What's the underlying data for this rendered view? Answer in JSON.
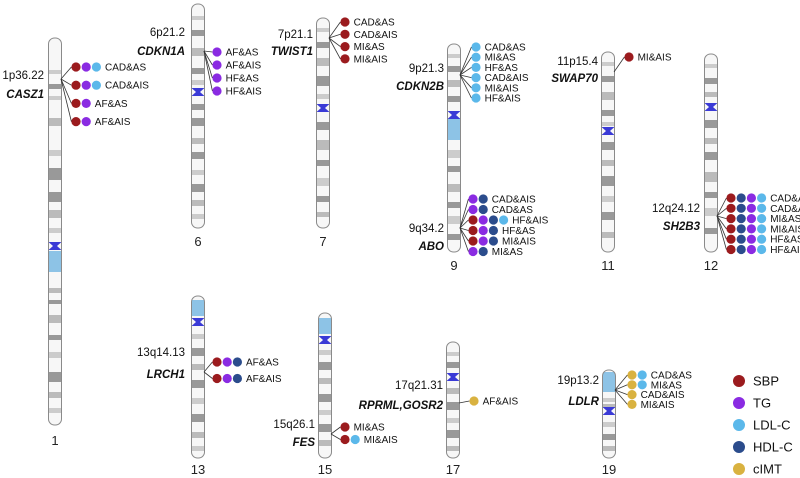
{
  "colors": {
    "SBP": "#9b1b1e",
    "TG": "#8a2be2",
    "LDL-C": "#5bb8ea",
    "HDL-C": "#2b4c8c",
    "cIMT": "#d9b240",
    "centromere": "#3a3ad6",
    "stalk": "#8dc3e6",
    "outline": "#8a8a8a"
  },
  "legend": [
    {
      "trait": "SBP",
      "label": "SBP"
    },
    {
      "trait": "TG",
      "label": "TG"
    },
    {
      "trait": "LDL-C",
      "label": "LDL-C"
    },
    {
      "trait": "HDL-C",
      "label": "HDL-C"
    },
    {
      "trait": "cIMT",
      "label": "cIMT"
    }
  ],
  "chromosomes": [
    {
      "id": "1",
      "label": "1"
    },
    {
      "id": "6",
      "label": "6"
    },
    {
      "id": "7",
      "label": "7"
    },
    {
      "id": "9",
      "label": "9"
    },
    {
      "id": "11",
      "label": "11"
    },
    {
      "id": "12",
      "label": "12"
    },
    {
      "id": "13",
      "label": "13"
    },
    {
      "id": "15",
      "label": "15"
    },
    {
      "id": "17",
      "label": "17"
    },
    {
      "id": "19",
      "label": "19"
    }
  ],
  "loci": [
    {
      "chrom": "1",
      "band": "1p36.22",
      "gene": "CASZ1",
      "rows": [
        {
          "traits": [
            "SBP",
            "TG",
            "LDL-C"
          ],
          "label": "CAD&AS"
        },
        {
          "traits": [
            "SBP",
            "TG",
            "LDL-C"
          ],
          "label": "CAD&AIS"
        },
        {
          "traits": [
            "SBP",
            "TG"
          ],
          "label": "AF&AS"
        },
        {
          "traits": [
            "SBP",
            "TG"
          ],
          "label": "AF&AIS"
        }
      ]
    },
    {
      "chrom": "6",
      "band": "6p21.2",
      "gene": "CDKN1A",
      "rows": [
        {
          "traits": [
            "TG"
          ],
          "label": "AF&AS"
        },
        {
          "traits": [
            "TG"
          ],
          "label": "AF&AIS"
        },
        {
          "traits": [
            "TG"
          ],
          "label": "HF&AS"
        },
        {
          "traits": [
            "TG"
          ],
          "label": "HF&AIS"
        }
      ]
    },
    {
      "chrom": "7",
      "band": "7p21.1",
      "gene": "TWIST1",
      "rows": [
        {
          "traits": [
            "SBP"
          ],
          "label": "CAD&AS"
        },
        {
          "traits": [
            "SBP"
          ],
          "label": "CAD&AIS"
        },
        {
          "traits": [
            "SBP"
          ],
          "label": "MI&AS"
        },
        {
          "traits": [
            "SBP"
          ],
          "label": "MI&AIS"
        }
      ]
    },
    {
      "chrom": "9",
      "band": "9p21.3",
      "gene": "CDKN2B",
      "rows": [
        {
          "traits": [
            "LDL-C"
          ],
          "label": "CAD&AS"
        },
        {
          "traits": [
            "LDL-C"
          ],
          "label": "MI&AS"
        },
        {
          "traits": [
            "LDL-C"
          ],
          "label": "HF&AS"
        },
        {
          "traits": [
            "LDL-C"
          ],
          "label": "CAD&AIS"
        },
        {
          "traits": [
            "LDL-C"
          ],
          "label": "MI&AIS"
        },
        {
          "traits": [
            "LDL-C"
          ],
          "label": "HF&AIS"
        }
      ]
    },
    {
      "chrom": "9",
      "band": "9q34.2",
      "gene": "ABO",
      "rows": [
        {
          "traits": [
            "TG",
            "HDL-C"
          ],
          "label": "CAD&AIS"
        },
        {
          "traits": [
            "TG",
            "HDL-C"
          ],
          "label": "CAD&AS"
        },
        {
          "traits": [
            "SBP",
            "TG",
            "HDL-C",
            "LDL-C"
          ],
          "label": "HF&AIS"
        },
        {
          "traits": [
            "SBP",
            "TG",
            "HDL-C"
          ],
          "label": "HF&AS"
        },
        {
          "traits": [
            "SBP",
            "TG",
            "HDL-C"
          ],
          "label": "MI&AIS"
        },
        {
          "traits": [
            "TG",
            "HDL-C"
          ],
          "label": "MI&AS"
        }
      ]
    },
    {
      "chrom": "11",
      "band": "11p15.4",
      "gene": "SWAP70",
      "rows": [
        {
          "traits": [
            "SBP"
          ],
          "label": "MI&AIS"
        }
      ]
    },
    {
      "chrom": "12",
      "band": "12q24.12",
      "gene": "SH2B3",
      "rows": [
        {
          "traits": [
            "SBP",
            "HDL-C",
            "TG",
            "LDL-C"
          ],
          "label": "CAD&AS"
        },
        {
          "traits": [
            "SBP",
            "HDL-C",
            "TG",
            "LDL-C"
          ],
          "label": "CAD&AIS"
        },
        {
          "traits": [
            "SBP",
            "HDL-C",
            "TG",
            "LDL-C"
          ],
          "label": "MI&AS"
        },
        {
          "traits": [
            "SBP",
            "HDL-C",
            "TG",
            "LDL-C"
          ],
          "label": "MI&AIS"
        },
        {
          "traits": [
            "SBP",
            "HDL-C",
            "TG",
            "LDL-C"
          ],
          "label": "HF&AS"
        },
        {
          "traits": [
            "SBP",
            "HDL-C",
            "TG",
            "LDL-C"
          ],
          "label": "HF&AIS"
        }
      ]
    },
    {
      "chrom": "13",
      "band": "13q14.13",
      "gene": "LRCH1",
      "rows": [
        {
          "traits": [
            "SBP",
            "TG",
            "HDL-C"
          ],
          "label": "AF&AS"
        },
        {
          "traits": [
            "SBP",
            "TG",
            "HDL-C"
          ],
          "label": "AF&AIS"
        }
      ]
    },
    {
      "chrom": "15",
      "band": "15q26.1",
      "gene": "FES",
      "rows": [
        {
          "traits": [
            "SBP"
          ],
          "label": "MI&AS"
        },
        {
          "traits": [
            "SBP",
            "LDL-C"
          ],
          "label": "MI&AIS"
        }
      ]
    },
    {
      "chrom": "17",
      "band": "17q21.31",
      "gene": "RPRML,GOSR2",
      "rows": [
        {
          "traits": [
            "cIMT"
          ],
          "label": "AF&AIS"
        }
      ]
    },
    {
      "chrom": "19",
      "band": "19p13.2",
      "gene": "LDLR",
      "rows": [
        {
          "traits": [
            "cIMT",
            "LDL-C"
          ],
          "label": "CAD&AS"
        },
        {
          "traits": [
            "cIMT",
            "LDL-C"
          ],
          "label": "MI&AS"
        },
        {
          "traits": [
            "cIMT"
          ],
          "label": "CAD&AIS"
        },
        {
          "traits": [
            "cIMT"
          ],
          "label": "MI&AIS"
        }
      ]
    }
  ]
}
